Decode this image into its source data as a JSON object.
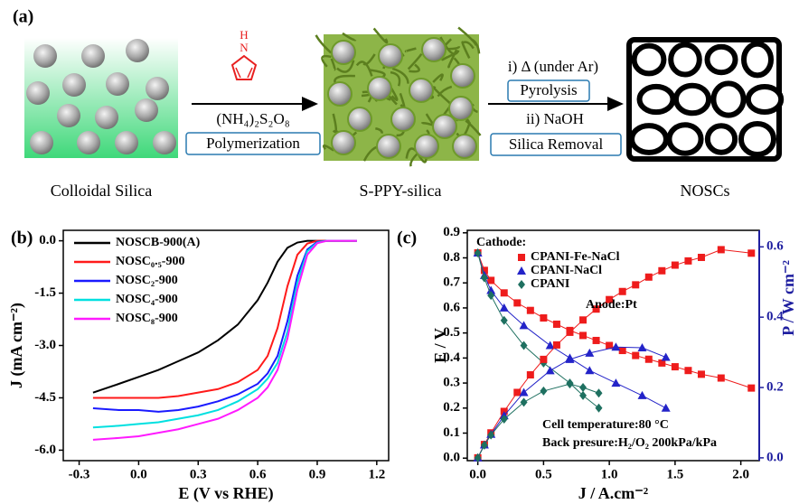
{
  "panel_a": {
    "label": "(a)",
    "pyrrole_atoms": [
      "H",
      "N"
    ],
    "reagent": "(NH₄)₂S₂O₈",
    "step1": "Polymerization",
    "step2_condition": "i) Δ (under Ar)",
    "step2": "Pyrolysis",
    "step3_condition": "ii) NaOH",
    "step3": "Silica Removal",
    "captions": [
      "Colloidal Silica",
      "S-PPY-silica",
      "NOSCs"
    ]
  },
  "chart_data": [
    {
      "type": "line",
      "label": "(b)",
      "xlabel": "E (V vs RHE)",
      "ylabel": "J (mA cm⁻²)",
      "xlim": [
        -0.38,
        1.26
      ],
      "ylim": [
        -6.3,
        0.3
      ],
      "xticks": [
        -0.3,
        {
          "value": 0,
          "label": "0.0"
        },
        0.3,
        0.6,
        0.9,
        1.2
      ],
      "yticks": [
        {
          "value": 0,
          "label": "0.0"
        },
        -1.5,
        {
          "value": -3,
          "label": "-3.0"
        },
        -4.5,
        {
          "value": -6,
          "label": "-6.0"
        }
      ],
      "legend": "upper left",
      "x": [
        -0.23,
        -0.1,
        0.0,
        0.1,
        0.2,
        0.3,
        0.4,
        0.5,
        0.6,
        0.65,
        0.7,
        0.75,
        0.8,
        0.85,
        0.9,
        0.95,
        1.0,
        1.1
      ],
      "series": [
        {
          "name": "NOSCB-900(A)",
          "color": "#000000",
          "values": [
            -4.35,
            -4.1,
            -3.9,
            -3.7,
            -3.45,
            -3.2,
            -2.85,
            -2.4,
            -1.7,
            -1.2,
            -0.6,
            -0.2,
            -0.05,
            0,
            0,
            0,
            0,
            0
          ]
        },
        {
          "name": "NOSC₀.₅-900",
          "color": "#ff1a1a",
          "values": [
            -4.5,
            -4.5,
            -4.5,
            -4.5,
            -4.45,
            -4.35,
            -4.25,
            -4.05,
            -3.7,
            -3.3,
            -2.5,
            -1.3,
            -0.4,
            -0.08,
            0,
            0,
            0,
            0
          ]
        },
        {
          "name": "NOSC₂-900",
          "color": "#1a1aff",
          "values": [
            -4.8,
            -4.85,
            -4.85,
            -4.9,
            -4.85,
            -4.75,
            -4.6,
            -4.4,
            -4.1,
            -3.8,
            -3.3,
            -2.3,
            -1.0,
            -0.25,
            -0.03,
            0,
            0,
            0
          ]
        },
        {
          "name": "NOSC₄-900",
          "color": "#00e0e0",
          "values": [
            -5.35,
            -5.3,
            -5.25,
            -5.2,
            -5.1,
            -5.0,
            -4.85,
            -4.6,
            -4.25,
            -3.95,
            -3.5,
            -2.6,
            -1.2,
            -0.3,
            -0.05,
            0,
            0,
            0
          ]
        },
        {
          "name": "NOSC₈-900",
          "color": "#ff1aff",
          "values": [
            -5.7,
            -5.65,
            -5.6,
            -5.5,
            -5.4,
            -5.25,
            -5.1,
            -4.85,
            -4.5,
            -4.2,
            -3.7,
            -2.8,
            -1.4,
            -0.4,
            -0.07,
            0,
            0,
            0
          ]
        }
      ]
    },
    {
      "type": "line",
      "label": "(c)",
      "xlabel": "J / A.cm⁻²",
      "ylabel": "E / V",
      "y2label": "P / W cm⁻²",
      "y2_color": "#1f1fa0",
      "xlim": [
        -0.08,
        2.14
      ],
      "ylim": [
        -0.01,
        0.91
      ],
      "y2lim": [
        -0.008,
        0.647
      ],
      "xticks": [
        {
          "value": 0,
          "label": "0.0"
        },
        0.5,
        {
          "value": 1,
          "label": "1.0"
        },
        1.5,
        {
          "value": 2,
          "label": "2.0"
        }
      ],
      "yticks": [
        {
          "value": 0,
          "label": "0.0"
        },
        0.1,
        0.2,
        0.3,
        0.4,
        0.5,
        0.6,
        0.7,
        0.8,
        0.9
      ],
      "y2ticks": [
        {
          "value": 0,
          "label": "0.0"
        },
        0.2,
        0.4,
        0.6
      ],
      "legend": "upper left",
      "legend_title": "Cathode:",
      "annotations": [
        "Anode:Pt",
        "Cell temperature:80 °C",
        "Back presure:H₂/O₂ 200kPa/kPa"
      ],
      "series": [
        {
          "name": "CPANI-Fe-NaCl",
          "color": "#ee1c1c",
          "marker": "square",
          "x": [
            0.0,
            0.05,
            0.1,
            0.2,
            0.3,
            0.4,
            0.5,
            0.6,
            0.7,
            0.8,
            0.9,
            1.0,
            1.1,
            1.2,
            1.3,
            1.4,
            1.5,
            1.6,
            1.7,
            1.85,
            2.08
          ],
          "values": [
            0.82,
            0.75,
            0.71,
            0.66,
            0.62,
            0.59,
            0.56,
            0.535,
            0.51,
            0.49,
            0.47,
            0.45,
            0.43,
            0.41,
            0.395,
            0.38,
            0.365,
            0.35,
            0.335,
            0.32,
            0.28
          ]
        },
        {
          "name": "CPANI-NaCl",
          "color": "#2323c8",
          "marker": "triangle",
          "x": [
            0.0,
            0.05,
            0.1,
            0.2,
            0.35,
            0.55,
            0.7,
            0.85,
            1.05,
            1.25,
            1.43
          ],
          "values": [
            0.82,
            0.73,
            0.67,
            0.6,
            0.53,
            0.45,
            0.4,
            0.35,
            0.3,
            0.25,
            0.2
          ]
        },
        {
          "name": "CPANI",
          "color": "#1e7060",
          "marker": "diamond",
          "x": [
            0.0,
            0.05,
            0.1,
            0.2,
            0.35,
            0.5,
            0.7,
            0.8,
            0.92
          ],
          "values": [
            0.82,
            0.72,
            0.65,
            0.55,
            0.45,
            0.38,
            0.3,
            0.25,
            0.2
          ]
        },
        {
          "color": "#ee1c1c",
          "marker": "square",
          "axis": "y2",
          "x": [
            0.0,
            0.05,
            0.1,
            0.2,
            0.3,
            0.4,
            0.5,
            0.6,
            0.7,
            0.8,
            0.9,
            1.0,
            1.1,
            1.2,
            1.3,
            1.4,
            1.5,
            1.6,
            1.7,
            1.85,
            2.08
          ],
          "values": [
            0,
            0.038,
            0.071,
            0.132,
            0.186,
            0.236,
            0.28,
            0.321,
            0.357,
            0.392,
            0.423,
            0.45,
            0.473,
            0.492,
            0.514,
            0.532,
            0.548,
            0.56,
            0.57,
            0.592,
            0.582
          ]
        },
        {
          "color": "#2323c8",
          "marker": "triangle",
          "axis": "y2",
          "x": [
            0.0,
            0.05,
            0.1,
            0.2,
            0.35,
            0.55,
            0.7,
            0.85,
            1.05,
            1.25,
            1.43
          ],
          "values": [
            0,
            0.037,
            0.067,
            0.12,
            0.186,
            0.248,
            0.28,
            0.298,
            0.315,
            0.313,
            0.286
          ]
        },
        {
          "color": "#1e7060",
          "marker": "diamond",
          "axis": "y2",
          "x": [
            0.0,
            0.05,
            0.1,
            0.2,
            0.35,
            0.5,
            0.7,
            0.8,
            0.92
          ],
          "values": [
            0,
            0.036,
            0.065,
            0.11,
            0.158,
            0.19,
            0.21,
            0.2,
            0.184
          ]
        }
      ]
    }
  ]
}
